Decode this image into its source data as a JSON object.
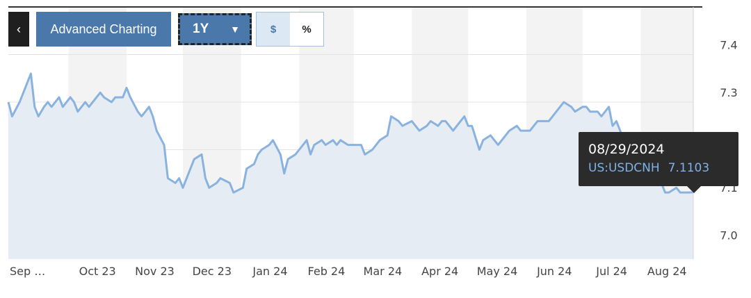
{
  "toolbar": {
    "back_icon": "chevron-left-icon",
    "advanced_label": "Advanced Charting",
    "range_label": "1Y",
    "range_caret_icon": "caret-down-icon",
    "currency_label": "$",
    "percent_label": "%"
  },
  "tooltip": {
    "date": "08/29/2024",
    "symbol": "US:USDCNH",
    "value": "7.1103"
  },
  "colors": {
    "line": "#89b2df",
    "area": "#e6ecf3",
    "band": "#f3f3f3",
    "grid": "#e3e3e3",
    "button": "#4a78aa"
  },
  "chart_data": {
    "type": "area",
    "title": "",
    "xlabel": "",
    "ylabel": "",
    "ylim": [
      6.97,
      7.5
    ],
    "yticks": [
      7.0,
      7.1,
      7.2,
      7.3,
      7.4
    ],
    "ytick_labels": [
      "7.0",
      "7.1",
      "",
      "7.3",
      "7.4"
    ],
    "grid": true,
    "month_labels": [
      "Sep …",
      "Oct 23",
      "Nov 23",
      "Dec 23",
      "Jan 24",
      "Feb 24",
      "Mar 24",
      "Apr 24",
      "May 24",
      "Jun 24",
      "Jul 24",
      "Aug 24"
    ],
    "series": [
      {
        "x": [
          "2023-08-30",
          "2023-09-01",
          "2023-09-05",
          "2023-09-08",
          "2023-09-11",
          "2023-09-13",
          "2023-09-15",
          "2023-09-18",
          "2023-09-20",
          "2023-09-22",
          "2023-09-26",
          "2023-09-28",
          "2023-10-02",
          "2023-10-04",
          "2023-10-06",
          "2023-10-10",
          "2023-10-12",
          "2023-10-16",
          "2023-10-18",
          "2023-10-20",
          "2023-10-24",
          "2023-10-26",
          "2023-10-30",
          "2023-11-01",
          "2023-11-03",
          "2023-11-07",
          "2023-11-09",
          "2023-11-13",
          "2023-11-15",
          "2023-11-17",
          "2023-11-21",
          "2023-11-23",
          "2023-11-27",
          "2023-11-29",
          "2023-12-01",
          "2023-12-05",
          "2023-12-07",
          "2023-12-11",
          "2023-12-13",
          "2023-12-15",
          "2023-12-19",
          "2023-12-21",
          "2023-12-26",
          "2023-12-28",
          "2024-01-02",
          "2024-01-04",
          "2024-01-08",
          "2024-01-10",
          "2024-01-12",
          "2024-01-16",
          "2024-01-18",
          "2024-01-22",
          "2024-01-24",
          "2024-01-26",
          "2024-01-30",
          "2024-02-01",
          "2024-02-05",
          "2024-02-07",
          "2024-02-09",
          "2024-02-13",
          "2024-02-15",
          "2024-02-19",
          "2024-02-21",
          "2024-02-23",
          "2024-02-27",
          "2024-03-01",
          "2024-03-05",
          "2024-03-07",
          "2024-03-11",
          "2024-03-13",
          "2024-03-15",
          "2024-03-19",
          "2024-03-21",
          "2024-03-25",
          "2024-03-27",
          "2024-04-01",
          "2024-04-03",
          "2024-04-05",
          "2024-04-09",
          "2024-04-11",
          "2024-04-15",
          "2024-04-17",
          "2024-04-19",
          "2024-04-23",
          "2024-04-25",
          "2024-04-29",
          "2024-05-01",
          "2024-05-03",
          "2024-05-07",
          "2024-05-09",
          "2024-05-13",
          "2024-05-15",
          "2024-05-17",
          "2024-05-21",
          "2024-05-23",
          "2024-05-27",
          "2024-05-29",
          "2024-06-03",
          "2024-06-05",
          "2024-06-07",
          "2024-06-11",
          "2024-06-13",
          "2024-06-17",
          "2024-06-19",
          "2024-06-21",
          "2024-06-25",
          "2024-06-27",
          "2024-07-01",
          "2024-07-03",
          "2024-07-05",
          "2024-07-09",
          "2024-07-11",
          "2024-07-15",
          "2024-07-17",
          "2024-07-19",
          "2024-07-23",
          "2024-07-25",
          "2024-07-29",
          "2024-07-31",
          "2024-08-02",
          "2024-08-06",
          "2024-08-08",
          "2024-08-12",
          "2024-08-14",
          "2024-08-16",
          "2024-08-20",
          "2024-08-22",
          "2024-08-26",
          "2024-08-29"
        ],
        "values": [
          7.3,
          7.27,
          7.3,
          7.33,
          7.36,
          7.29,
          7.27,
          7.29,
          7.3,
          7.29,
          7.31,
          7.29,
          7.31,
          7.3,
          7.28,
          7.3,
          7.29,
          7.31,
          7.32,
          7.31,
          7.3,
          7.31,
          7.31,
          7.33,
          7.31,
          7.28,
          7.27,
          7.29,
          7.27,
          7.24,
          7.21,
          7.14,
          7.13,
          7.14,
          7.12,
          7.16,
          7.18,
          7.19,
          7.14,
          7.12,
          7.13,
          7.14,
          7.13,
          7.11,
          7.12,
          7.16,
          7.17,
          7.19,
          7.2,
          7.21,
          7.22,
          7.19,
          7.15,
          7.18,
          7.19,
          7.2,
          7.22,
          7.19,
          7.21,
          7.22,
          7.21,
          7.22,
          7.21,
          7.22,
          7.21,
          7.21,
          7.21,
          7.19,
          7.2,
          7.21,
          7.22,
          7.23,
          7.27,
          7.26,
          7.25,
          7.26,
          7.25,
          7.24,
          7.25,
          7.26,
          7.25,
          7.26,
          7.26,
          7.24,
          7.25,
          7.27,
          7.25,
          7.25,
          7.2,
          7.22,
          7.23,
          7.22,
          7.21,
          7.23,
          7.24,
          7.25,
          7.24,
          7.24,
          7.25,
          7.26,
          7.26,
          7.26,
          7.28,
          7.29,
          7.3,
          7.29,
          7.28,
          7.29,
          7.29,
          7.28,
          7.28,
          7.27,
          7.29,
          7.25,
          7.26,
          7.22,
          7.18,
          7.17,
          7.16,
          7.15,
          7.14,
          7.13,
          7.13,
          7.11,
          7.11,
          7.12,
          7.11,
          7.11,
          7.1103
        ]
      }
    ]
  }
}
